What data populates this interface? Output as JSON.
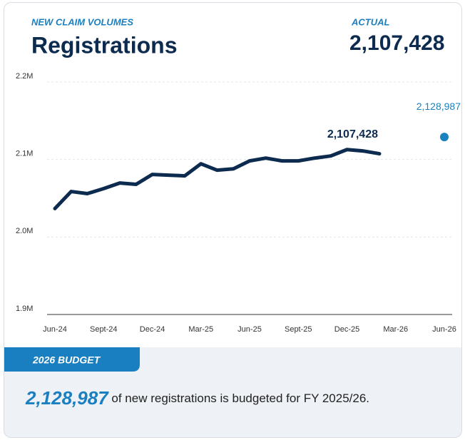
{
  "header": {
    "kicker": "NEW CLAIM VOLUMES",
    "title": "Registrations",
    "actual_label": "ACTUAL",
    "actual_value": "2,107,428"
  },
  "chart_data": {
    "type": "line",
    "categories": [
      "Jun-24",
      null,
      null,
      "Sept-24",
      null,
      null,
      "Dec-24",
      null,
      null,
      "Mar-25",
      null,
      null,
      "Jun-25",
      null,
      null,
      "Sept-25",
      null,
      null,
      "Dec-25",
      null,
      null,
      "Mar-26",
      null,
      null,
      "Jun-26"
    ],
    "series": [
      {
        "color": "#0d2b4e",
        "values": [
          2036700,
          2058700,
          2056000,
          2062400,
          2069700,
          2067900,
          2080700,
          2079800,
          2078900,
          2094500,
          2086200,
          2088000,
          2098200,
          2101800,
          2098200,
          2098200,
          2101800,
          2104600,
          2112800,
          2111000,
          2107428,
          null,
          null,
          null,
          null
        ],
        "value_labels": [
          null,
          null,
          null,
          null,
          null,
          null,
          null,
          null,
          null,
          null,
          null,
          null,
          null,
          null,
          null,
          null,
          null,
          null,
          null,
          null,
          "2,107,428",
          null,
          null,
          null,
          null
        ]
      },
      {
        "color": "#1a82bf",
        "values": [
          null,
          null,
          null,
          null,
          null,
          null,
          null,
          null,
          null,
          null,
          null,
          null,
          null,
          null,
          null,
          null,
          null,
          null,
          null,
          null,
          null,
          null,
          null,
          null,
          2128987
        ],
        "value_labels": [
          null,
          null,
          null,
          null,
          null,
          null,
          null,
          null,
          null,
          null,
          null,
          null,
          null,
          null,
          null,
          null,
          null,
          null,
          null,
          null,
          null,
          null,
          null,
          null,
          "2,128,987"
        ]
      }
    ],
    "ylim": [
      1900000,
      2200000
    ],
    "yticks": [
      {
        "value": 1900000,
        "label": "1.9M"
      },
      {
        "value": 2000000,
        "label": "2.0M"
      },
      {
        "value": 2100000,
        "label": "2.1M"
      },
      {
        "value": 2200000,
        "label": "2.2M"
      }
    ],
    "grid": true
  },
  "footer": {
    "tab": "2026 BUDGET",
    "value": "2,128,987",
    "text": " of new registrations is budgeted for FY 2025/26."
  }
}
